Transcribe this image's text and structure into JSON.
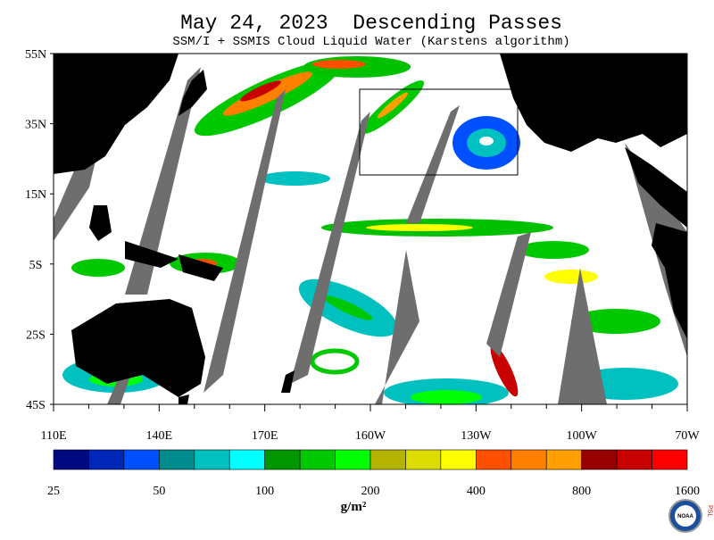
{
  "title": "May 24, 2023  Descending Passes",
  "subtitle": "SSM/I + SSMIS Cloud Liquid Water (Karstens algorithm)",
  "latitude_labels": [
    "55N",
    "35N",
    "15N",
    "5S",
    "25S",
    "45S"
  ],
  "longitude_labels": [
    "110E",
    "140E",
    "170E",
    "160W",
    "130W",
    "100W",
    "70W"
  ],
  "colorbar": {
    "labels": [
      "25",
      "50",
      "100",
      "200",
      "400",
      "800",
      "1600"
    ],
    "colors": [
      "#000a80",
      "#0028b8",
      "#0050ff",
      "#008c8c",
      "#00c0c0",
      "#00ffff",
      "#009600",
      "#00c800",
      "#00ff00",
      "#b4b400",
      "#dcdc00",
      "#ffff00",
      "#ff5000",
      "#ff8000",
      "#ffa000",
      "#960000",
      "#c80000",
      "#ff0000"
    ],
    "unit": "g/m²"
  },
  "logo": "NOAA",
  "side_logo": "PSL"
}
